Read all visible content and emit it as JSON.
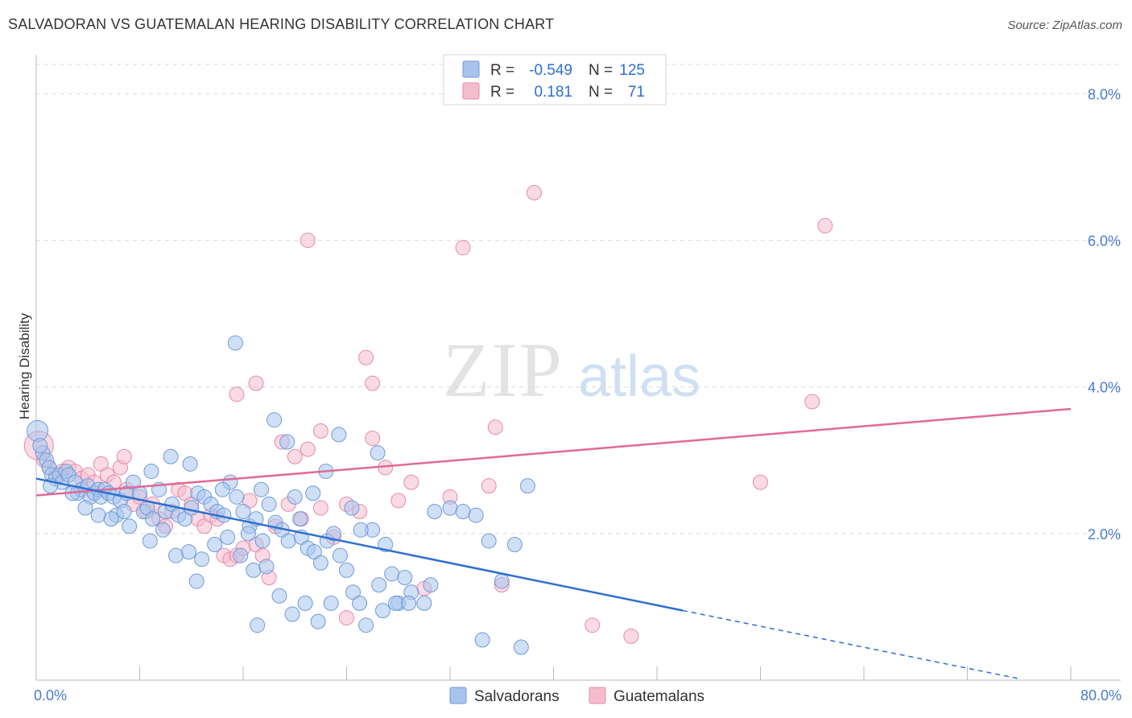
{
  "header": {
    "title": "SALVADORAN VS GUATEMALAN HEARING DISABILITY CORRELATION CHART",
    "source": "Source: ZipAtlas.com"
  },
  "watermark": {
    "zip": "ZIP",
    "atlas": "atlas"
  },
  "legend_top": {
    "rows": [
      {
        "r_label": "R =",
        "r_value": "-0.549",
        "n_label": "N =",
        "n_value": "125"
      },
      {
        "r_label": "R =",
        "r_value": "0.181",
        "n_label": "N =",
        "n_value": "71"
      }
    ]
  },
  "legend_bottom": {
    "items": [
      "Salvadorans",
      "Guatemalans"
    ]
  },
  "colors": {
    "blue_fill": "#a8c4ec",
    "blue_stroke": "#6f9ad8",
    "blue_line": "#2f6fd0",
    "pink_fill": "#f5bccd",
    "pink_stroke": "#e58aa8",
    "pink_line": "#e06a95",
    "tick_label": "#4a7cc9",
    "grid": "#d8d8d8"
  },
  "chart_data": {
    "type": "scatter",
    "title": "SALVADORAN VS GUATEMALAN HEARING DISABILITY CORRELATION CHART",
    "xlabel": "",
    "ylabel": "Hearing Disability",
    "xlim": [
      0,
      80
    ],
    "ylim": [
      0,
      8.4
    ],
    "x_tick_labels": [
      "0.0%",
      "80.0%"
    ],
    "y_ticks": [
      2,
      4,
      6,
      8
    ],
    "y_tick_labels": [
      "2.0%",
      "4.0%",
      "6.0%",
      "8.0%"
    ],
    "grid": true,
    "legend_position": "top-center",
    "series": [
      {
        "name": "Salvadorans",
        "r": -0.549,
        "n": 125,
        "trend": {
          "x0": 0,
          "y0": 2.75,
          "x1": 50,
          "y1": 0.95,
          "dashed_to_x": 76,
          "dashed_to_y": 0.02
        },
        "points": [
          [
            0.1,
            3.4
          ],
          [
            0.5,
            3.1
          ],
          [
            0.8,
            3.0
          ],
          [
            1.0,
            2.9
          ],
          [
            1.2,
            2.8
          ],
          [
            1.5,
            2.75
          ],
          [
            1.8,
            2.8
          ],
          [
            2.0,
            2.7
          ],
          [
            2.3,
            2.85
          ],
          [
            2.5,
            2.8
          ],
          [
            3.0,
            2.7
          ],
          [
            3.2,
            2.55
          ],
          [
            3.5,
            2.6
          ],
          [
            4.0,
            2.65
          ],
          [
            4.2,
            2.5
          ],
          [
            4.5,
            2.55
          ],
          [
            4.8,
            2.6
          ],
          [
            5.0,
            2.5
          ],
          [
            5.3,
            2.6
          ],
          [
            5.6,
            2.55
          ],
          [
            6.0,
            2.5
          ],
          [
            6.5,
            2.45
          ],
          [
            7.0,
            2.55
          ],
          [
            7.5,
            2.7
          ],
          [
            8.0,
            2.55
          ],
          [
            8.3,
            2.3
          ],
          [
            8.6,
            2.35
          ],
          [
            9.0,
            2.2
          ],
          [
            9.5,
            2.6
          ],
          [
            10.0,
            2.3
          ],
          [
            10.5,
            2.4
          ],
          [
            11.0,
            2.25
          ],
          [
            11.5,
            2.2
          ],
          [
            12.0,
            2.35
          ],
          [
            12.5,
            2.55
          ],
          [
            13.0,
            2.5
          ],
          [
            13.5,
            2.4
          ],
          [
            14.0,
            2.3
          ],
          [
            14.5,
            2.25
          ],
          [
            15.0,
            2.7
          ],
          [
            15.5,
            2.5
          ],
          [
            16.0,
            2.3
          ],
          [
            16.5,
            2.1
          ],
          [
            17.0,
            2.2
          ],
          [
            17.5,
            1.9
          ],
          [
            18.0,
            2.4
          ],
          [
            18.5,
            2.15
          ],
          [
            19.0,
            2.05
          ],
          [
            19.5,
            1.9
          ],
          [
            20.0,
            2.5
          ],
          [
            20.5,
            1.95
          ],
          [
            21.0,
            1.8
          ],
          [
            21.5,
            1.75
          ],
          [
            22.0,
            1.6
          ],
          [
            22.5,
            1.9
          ],
          [
            23.0,
            2.0
          ],
          [
            23.5,
            1.7
          ],
          [
            24.0,
            1.5
          ],
          [
            24.5,
            1.2
          ],
          [
            25.0,
            1.05
          ],
          [
            26.0,
            2.05
          ],
          [
            26.5,
            1.3
          ],
          [
            27.0,
            1.85
          ],
          [
            27.5,
            1.45
          ],
          [
            28.0,
            1.05
          ],
          [
            28.5,
            1.4
          ],
          [
            29.0,
            1.2
          ],
          [
            30.0,
            1.05
          ],
          [
            32.0,
            2.35
          ],
          [
            33.0,
            2.3
          ],
          [
            34.0,
            2.25
          ],
          [
            35.0,
            1.9
          ],
          [
            36.0,
            1.35
          ],
          [
            37.0,
            1.85
          ],
          [
            38.0,
            2.65
          ],
          [
            6.2,
            2.25
          ],
          [
            7.2,
            2.1
          ],
          [
            8.8,
            1.9
          ],
          [
            9.8,
            2.05
          ],
          [
            10.8,
            1.7
          ],
          [
            11.8,
            1.75
          ],
          [
            12.8,
            1.65
          ],
          [
            13.8,
            1.85
          ],
          [
            14.8,
            1.95
          ],
          [
            15.8,
            1.7
          ],
          [
            16.8,
            1.5
          ],
          [
            17.8,
            1.55
          ],
          [
            18.8,
            1.15
          ],
          [
            19.8,
            0.9
          ],
          [
            20.8,
            1.05
          ],
          [
            21.8,
            0.8
          ],
          [
            22.8,
            1.05
          ],
          [
            25.5,
            0.75
          ],
          [
            27.8,
            1.05
          ],
          [
            30.5,
            1.3
          ],
          [
            34.5,
            0.55
          ],
          [
            37.5,
            0.45
          ],
          [
            30.8,
            2.3
          ],
          [
            28.8,
            1.05
          ],
          [
            26.8,
            0.95
          ],
          [
            2.8,
            2.55
          ],
          [
            3.8,
            2.35
          ],
          [
            4.8,
            2.25
          ],
          [
            5.8,
            2.2
          ],
          [
            6.8,
            2.3
          ],
          [
            8.9,
            2.85
          ],
          [
            11.9,
            2.95
          ],
          [
            15.4,
            4.6
          ],
          [
            18.4,
            3.55
          ],
          [
            19.4,
            3.25
          ],
          [
            23.4,
            3.35
          ],
          [
            26.4,
            3.1
          ],
          [
            22.4,
            2.85
          ],
          [
            14.4,
            2.6
          ],
          [
            10.4,
            3.05
          ],
          [
            17.4,
            2.6
          ],
          [
            20.4,
            2.2
          ],
          [
            24.4,
            2.35
          ],
          [
            21.4,
            2.55
          ],
          [
            16.4,
            2.0
          ],
          [
            12.4,
            1.35
          ],
          [
            17.1,
            0.75
          ],
          [
            25.1,
            2.05
          ],
          [
            1.1,
            2.65
          ],
          [
            0.3,
            3.2
          ]
        ]
      },
      {
        "name": "Guatemalans",
        "r": 0.181,
        "n": 71,
        "trend": {
          "x0": 0,
          "y0": 2.52,
          "x1": 80,
          "y1": 3.7
        },
        "points": [
          [
            0.2,
            3.2
          ],
          [
            0.6,
            3.0
          ],
          [
            1.0,
            2.9
          ],
          [
            1.5,
            2.8
          ],
          [
            2.0,
            2.85
          ],
          [
            2.5,
            2.9
          ],
          [
            3.0,
            2.85
          ],
          [
            3.5,
            2.75
          ],
          [
            4.0,
            2.8
          ],
          [
            4.5,
            2.7
          ],
          [
            5.0,
            2.95
          ],
          [
            5.5,
            2.8
          ],
          [
            6.0,
            2.7
          ],
          [
            6.5,
            2.9
          ],
          [
            7.0,
            2.6
          ],
          [
            7.5,
            2.4
          ],
          [
            8.0,
            2.5
          ],
          [
            8.5,
            2.3
          ],
          [
            9.0,
            2.4
          ],
          [
            9.5,
            2.2
          ],
          [
            10.0,
            2.1
          ],
          [
            10.5,
            2.3
          ],
          [
            11.0,
            2.6
          ],
          [
            11.5,
            2.55
          ],
          [
            12.0,
            2.4
          ],
          [
            12.5,
            2.2
          ],
          [
            13.0,
            2.1
          ],
          [
            13.5,
            2.25
          ],
          [
            14.0,
            2.2
          ],
          [
            14.5,
            1.7
          ],
          [
            15.0,
            1.65
          ],
          [
            15.5,
            1.7
          ],
          [
            16.0,
            1.8
          ],
          [
            16.5,
            2.45
          ],
          [
            17.0,
            1.85
          ],
          [
            17.5,
            1.7
          ],
          [
            18.0,
            1.4
          ],
          [
            18.5,
            2.1
          ],
          [
            19.0,
            3.25
          ],
          [
            19.5,
            2.4
          ],
          [
            20.0,
            3.05
          ],
          [
            20.5,
            2.2
          ],
          [
            21.0,
            3.15
          ],
          [
            22.0,
            2.35
          ],
          [
            23.0,
            1.95
          ],
          [
            24.0,
            2.4
          ],
          [
            25.0,
            2.3
          ],
          [
            26.0,
            3.3
          ],
          [
            27.0,
            2.9
          ],
          [
            28.0,
            2.45
          ],
          [
            29.0,
            2.7
          ],
          [
            30.0,
            1.25
          ],
          [
            32.0,
            2.5
          ],
          [
            35.0,
            2.65
          ],
          [
            36.0,
            1.3
          ],
          [
            43.0,
            0.75
          ],
          [
            46.0,
            0.6
          ],
          [
            56.0,
            2.7
          ],
          [
            60.0,
            3.8
          ],
          [
            61.0,
            6.2
          ],
          [
            38.5,
            6.65
          ],
          [
            33.0,
            5.9
          ],
          [
            21.0,
            6.0
          ],
          [
            25.5,
            4.4
          ],
          [
            26.0,
            4.05
          ],
          [
            17.0,
            4.05
          ],
          [
            15.5,
            3.9
          ],
          [
            22.0,
            3.4
          ],
          [
            35.5,
            3.45
          ],
          [
            24.0,
            0.85
          ],
          [
            6.8,
            3.05
          ]
        ]
      }
    ]
  }
}
